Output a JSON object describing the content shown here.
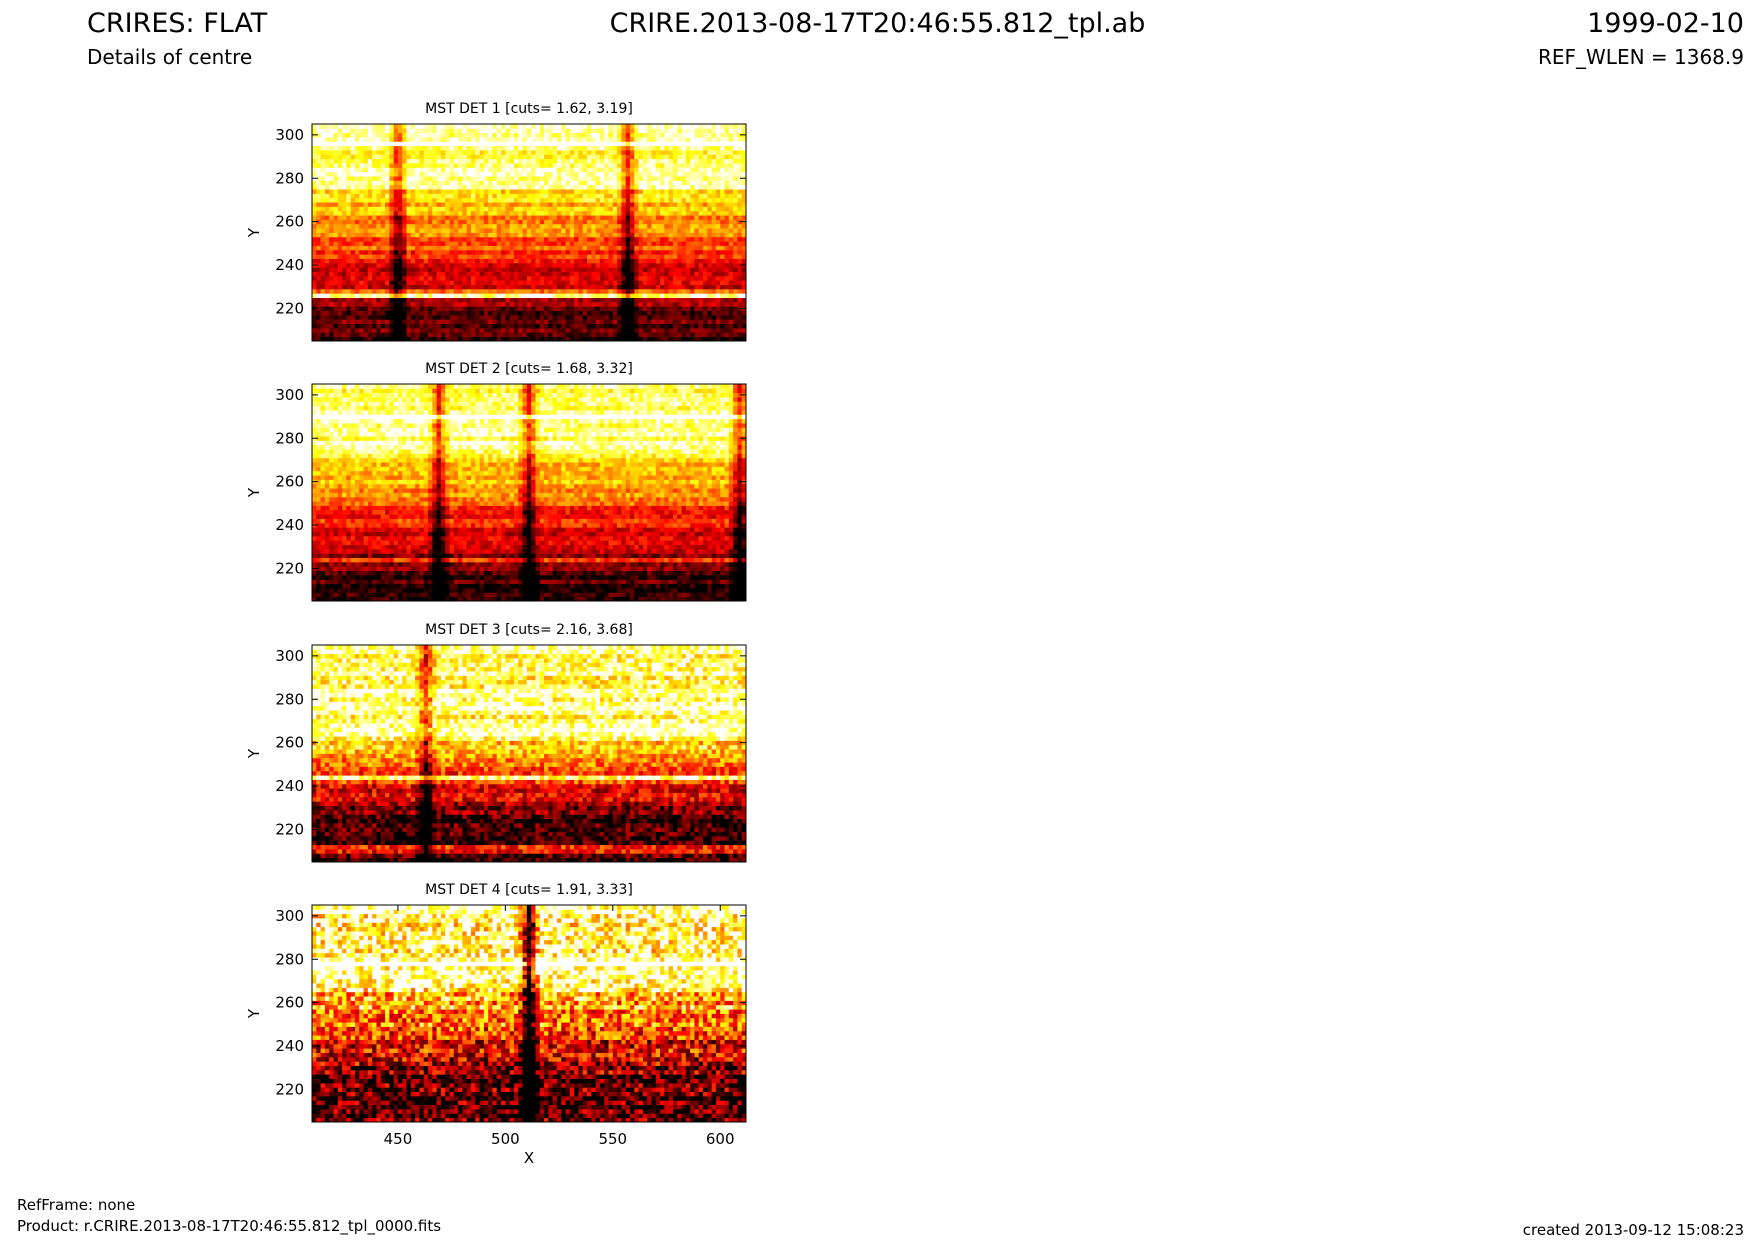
{
  "header": {
    "title": "CRIRES: FLAT",
    "subtitle": "Details of centre",
    "file": "CRIRE.2013-08-17T20:46:55.812_tpl.ab",
    "date": "1999-02-10",
    "ref_wlen": "REF_WLEN = 1368.9"
  },
  "footer": {
    "refframe": "RefFrame: none",
    "product": "Product: r.CRIRE.2013-08-17T20:46:55.812_tpl_0000.fits",
    "created": "created 2013-09-12 15:08:23"
  },
  "colors": {
    "colormap": "afmhot",
    "cmap_stops": [
      "#000000",
      "#800000",
      "#ff0000",
      "#ff8000",
      "#ffff00",
      "#ffffff"
    ]
  },
  "chart_data": [
    {
      "type": "heatmap",
      "title": "MST DET 1 [cuts= 1.62, 3.19]",
      "ylabel": "Y",
      "xlim": [
        410,
        612
      ],
      "ylim": [
        205,
        305
      ],
      "yticks": [
        220,
        240,
        260,
        280,
        300
      ],
      "xticks": [],
      "features": {
        "bright_above": 276,
        "dark_below": 216,
        "bands": [
          227,
          226,
          296
        ],
        "vertical_dark_columns": [
          450,
          557
        ]
      }
    },
    {
      "type": "heatmap",
      "title": "MST DET 2 [cuts= 1.68, 3.32]",
      "ylabel": "Y",
      "xlim": [
        410,
        612
      ],
      "ylim": [
        205,
        305
      ],
      "yticks": [
        220,
        240,
        260,
        280,
        300
      ],
      "xticks": [],
      "features": {
        "bright_above": 274,
        "dark_below": 218,
        "bands": [
          224,
          290
        ],
        "vertical_dark_columns": [
          469,
          511,
          609
        ]
      }
    },
    {
      "type": "heatmap",
      "title": "MST DET 3 [cuts= 2.16, 3.68]",
      "ylabel": "Y",
      "xlim": [
        410,
        612
      ],
      "ylim": [
        205,
        305
      ],
      "yticks": [
        220,
        240,
        260,
        280,
        300
      ],
      "xticks": [],
      "features": {
        "bright_above": 262,
        "dark_below": 225,
        "bands": [
          244,
          211
        ],
        "vertical_dark_columns": [
          463
        ]
      }
    },
    {
      "type": "heatmap",
      "title": "MST DET 4 [cuts= 1.91, 3.33]",
      "ylabel": "Y",
      "xlabel": "X",
      "xlim": [
        410,
        612
      ],
      "ylim": [
        205,
        305
      ],
      "yticks": [
        220,
        240,
        260,
        280,
        300
      ],
      "xticks": [
        450,
        500,
        550,
        600
      ],
      "features": {
        "bright_above": 268,
        "dark_below": 225,
        "bands": [
          278
        ],
        "vertical_dark_columns": [
          511
        ]
      }
    }
  ]
}
